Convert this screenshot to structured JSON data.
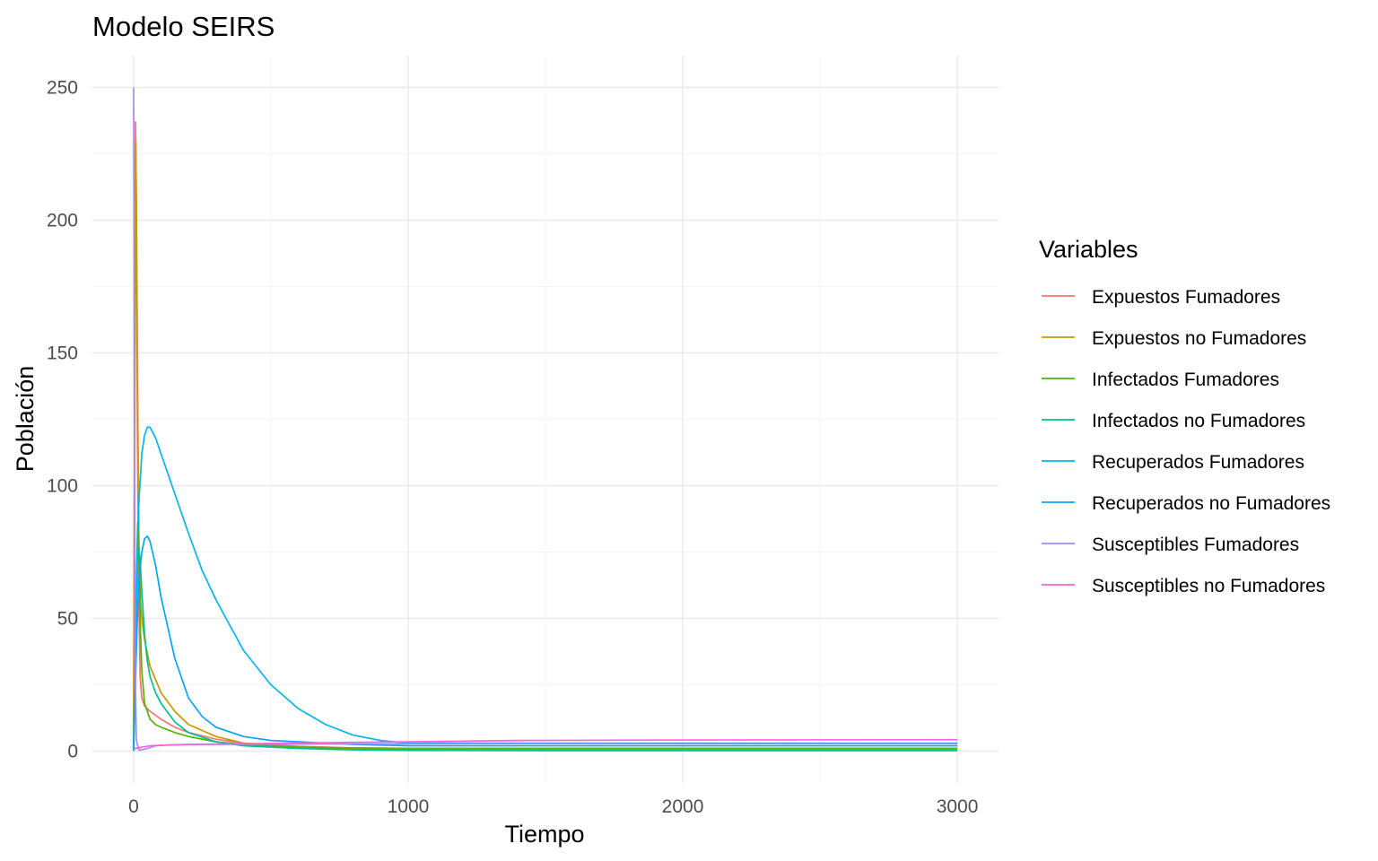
{
  "chart_data": {
    "type": "line",
    "title": "Modelo SEIRS",
    "xlabel": "Tiempo",
    "ylabel": "Población",
    "xlim": [
      -150,
      3150
    ],
    "ylim": [
      -12,
      262
    ],
    "x_ticks": [
      0,
      1000,
      2000,
      3000
    ],
    "y_ticks": [
      0,
      50,
      100,
      150,
      200,
      250
    ],
    "x_ticks_minor": [
      500,
      1500,
      2500
    ],
    "y_ticks_minor": [
      25,
      75,
      125,
      175,
      225
    ],
    "grid": true,
    "legend": {
      "title": "Variables",
      "position": "right"
    },
    "series": [
      {
        "name": "Expuestos Fumadores",
        "color": "#F8766D",
        "x": [
          0,
          4,
          7,
          10,
          14,
          18,
          24,
          30,
          40,
          60,
          100,
          150,
          200,
          300,
          400,
          600,
          800,
          1000,
          1500,
          2000,
          3000
        ],
        "y": [
          0,
          150,
          237,
          210,
          120,
          60,
          28,
          20,
          17,
          15,
          12,
          9,
          7,
          4.5,
          3,
          1.8,
          1.2,
          1,
          1,
          1,
          1
        ]
      },
      {
        "name": "Expuestos no Fumadores",
        "color": "#C49A00",
        "x": [
          0,
          4,
          8,
          12,
          16,
          20,
          26,
          32,
          40,
          60,
          100,
          150,
          200,
          300,
          400,
          600,
          800,
          1000,
          1500,
          2000,
          3000
        ],
        "y": [
          0,
          110,
          230,
          180,
          120,
          75,
          55,
          48,
          42,
          32,
          22,
          15,
          10,
          5.5,
          3,
          1.3,
          0.8,
          0.6,
          0.6,
          0.6,
          0.6
        ]
      },
      {
        "name": "Infectados Fumadores",
        "color": "#53B400",
        "x": [
          0,
          5,
          10,
          15,
          20,
          25,
          30,
          40,
          60,
          80,
          100,
          150,
          200,
          300,
          400,
          600,
          800,
          1000,
          1500,
          2000,
          3000
        ],
        "y": [
          0,
          35,
          62,
          86,
          70,
          45,
          30,
          18,
          12,
          10,
          9,
          7,
          5.5,
          3.5,
          2.5,
          1.5,
          1.2,
          1,
          1,
          1,
          1
        ]
      },
      {
        "name": "Infectados no Fumadores",
        "color": "#00C094",
        "x": [
          0,
          5,
          10,
          15,
          20,
          25,
          30,
          40,
          50,
          60,
          80,
          100,
          150,
          200,
          300,
          400,
          600,
          800,
          1000,
          1500,
          2000,
          3000
        ],
        "y": [
          0,
          30,
          55,
          72,
          76,
          70,
          60,
          44,
          34,
          28,
          22,
          18,
          11,
          7,
          3.5,
          2,
          1,
          0.5,
          0.3,
          0.2,
          0.2,
          0.2
        ]
      },
      {
        "name": "Recuperados Fumadores",
        "color": "#00B6EB",
        "x": [
          0,
          5,
          10,
          15,
          20,
          30,
          40,
          50,
          60,
          80,
          100,
          150,
          200,
          250,
          300,
          400,
          500,
          600,
          700,
          800,
          900,
          1000,
          1500,
          2000,
          3000
        ],
        "y": [
          0,
          25,
          55,
          80,
          95,
          112,
          119,
          122,
          122,
          118,
          112,
          97,
          82,
          68,
          57,
          38,
          25,
          16,
          10,
          6,
          4,
          3,
          3,
          3,
          3
        ]
      },
      {
        "name": "Recuperados no Fumadores",
        "color": "#06A4FF",
        "x": [
          0,
          5,
          10,
          15,
          20,
          30,
          40,
          50,
          60,
          80,
          100,
          150,
          200,
          250,
          300,
          400,
          500,
          600,
          800,
          1000,
          1500,
          2000,
          3000
        ],
        "y": [
          0,
          18,
          38,
          54,
          65,
          75,
          80,
          81,
          79,
          70,
          58,
          35,
          20,
          13,
          9,
          5.5,
          4,
          3.5,
          2.5,
          2,
          2,
          2,
          2
        ]
      },
      {
        "name": "Susceptibles Fumadores",
        "color": "#A58AFF",
        "x": [
          0,
          1,
          3,
          6,
          10,
          20,
          50,
          80,
          120,
          200,
          400,
          800,
          1500,
          2000,
          3000
        ],
        "y": [
          250,
          220,
          120,
          30,
          4,
          0.3,
          1,
          2,
          2.3,
          2.5,
          2.6,
          2.7,
          2.8,
          2.8,
          2.8
        ]
      },
      {
        "name": "Susceptibles no Fumadores",
        "color": "#FB61D7",
        "x": [
          0,
          2,
          5,
          8,
          15,
          30,
          60,
          100,
          200,
          400,
          600,
          800,
          1000,
          1400,
          2000,
          3000
        ],
        "y": [
          0,
          0.5,
          1,
          1,
          1.2,
          1.5,
          2,
          2.2,
          2.5,
          2.8,
          3,
          3.3,
          3.5,
          4,
          4.2,
          4.3
        ]
      }
    ]
  }
}
